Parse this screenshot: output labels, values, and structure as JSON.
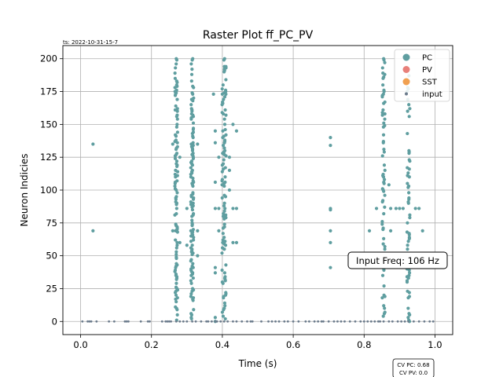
{
  "chart_data": {
    "type": "scatter",
    "title": "Raster Plot ff_PC_PV",
    "timestamp": "ts: 2022-10-31-15-7",
    "xlabel": "Time (s)",
    "ylabel": "Neuron Indicies",
    "xlim": [
      -0.05,
      1.05
    ],
    "ylim": [
      -10,
      210
    ],
    "x_ticks": [
      0.0,
      0.2,
      0.4,
      0.6,
      0.8,
      1.0
    ],
    "x_tick_labels": [
      "0.0",
      "0.2",
      "0.4",
      "0.6",
      "0.8",
      "1.0"
    ],
    "y_ticks": [
      0,
      25,
      50,
      75,
      100,
      125,
      150,
      175,
      200
    ],
    "y_tick_labels": [
      "0",
      "25",
      "50",
      "75",
      "100",
      "125",
      "150",
      "175",
      "200"
    ],
    "grid": true,
    "legend_position": "top-right",
    "legend": [
      {
        "label": "PC",
        "color": "#5f9ea0"
      },
      {
        "label": "PV",
        "color": "#e8807a"
      },
      {
        "label": "SST",
        "color": "#f0a050"
      },
      {
        "label": "input",
        "color": "#6b7b8c"
      }
    ],
    "annotation": "Input Freq: 106 Hz",
    "cv_pc": "CV PC: 0.68",
    "cv_pv": "CV PV: 0.0",
    "series": [
      {
        "name": "PC",
        "color": "#5f9ea0",
        "bursts": [
          {
            "t": 0.27,
            "jitter": 0.004,
            "n_min": 0,
            "n_max": 200,
            "density": 0.55
          },
          {
            "t": 0.315,
            "jitter": 0.004,
            "n_min": 0,
            "n_max": 200,
            "density": 0.6
          },
          {
            "t": 0.405,
            "jitter": 0.006,
            "n_min": 0,
            "n_max": 200,
            "density": 0.45
          },
          {
            "t": 0.855,
            "jitter": 0.004,
            "n_min": 0,
            "n_max": 200,
            "density": 0.35
          },
          {
            "t": 0.925,
            "jitter": 0.004,
            "n_min": 0,
            "n_max": 200,
            "density": 0.3
          }
        ],
        "points": [
          [
            0.035,
            135
          ],
          [
            0.035,
            69
          ],
          [
            0.26,
            135
          ],
          [
            0.26,
            69
          ],
          [
            0.28,
            60
          ],
          [
            0.28,
            125
          ],
          [
            0.3,
            58
          ],
          [
            0.3,
            86
          ],
          [
            0.33,
            69
          ],
          [
            0.33,
            135
          ],
          [
            0.33,
            50
          ],
          [
            0.375,
            173
          ],
          [
            0.38,
            145
          ],
          [
            0.38,
            136
          ],
          [
            0.38,
            106
          ],
          [
            0.38,
            86
          ],
          [
            0.38,
            41
          ],
          [
            0.38,
            37
          ],
          [
            0.38,
            3
          ],
          [
            0.38,
            0
          ],
          [
            0.39,
            125
          ],
          [
            0.39,
            86
          ],
          [
            0.39,
            69
          ],
          [
            0.41,
            194
          ],
          [
            0.41,
            184
          ],
          [
            0.41,
            173
          ],
          [
            0.42,
            125
          ],
          [
            0.42,
            115
          ],
          [
            0.42,
            100
          ],
          [
            0.43,
            150
          ],
          [
            0.43,
            86
          ],
          [
            0.43,
            60
          ],
          [
            0.44,
            145
          ],
          [
            0.44,
            86
          ],
          [
            0.44,
            60
          ],
          [
            0.705,
            140
          ],
          [
            0.705,
            134
          ],
          [
            0.705,
            86
          ],
          [
            0.705,
            85
          ],
          [
            0.705,
            69
          ],
          [
            0.705,
            60
          ],
          [
            0.705,
            41
          ],
          [
            0.815,
            69
          ],
          [
            0.835,
            86
          ],
          [
            0.84,
            50
          ],
          [
            0.87,
            104
          ],
          [
            0.875,
            86
          ],
          [
            0.875,
            69
          ],
          [
            0.89,
            86
          ],
          [
            0.9,
            86
          ],
          [
            0.91,
            86
          ],
          [
            0.945,
            86
          ],
          [
            0.955,
            86
          ],
          [
            0.965,
            69
          ]
        ]
      },
      {
        "name": "input",
        "color": "#6b7b8c",
        "points": [
          [
            0.005,
            0
          ],
          [
            0.02,
            0
          ],
          [
            0.025,
            0
          ],
          [
            0.03,
            0
          ],
          [
            0.045,
            0
          ],
          [
            0.08,
            0
          ],
          [
            0.095,
            0
          ],
          [
            0.125,
            0
          ],
          [
            0.13,
            0
          ],
          [
            0.135,
            0
          ],
          [
            0.17,
            0
          ],
          [
            0.19,
            0
          ],
          [
            0.195,
            0
          ],
          [
            0.23,
            0
          ],
          [
            0.24,
            0
          ],
          [
            0.245,
            0
          ],
          [
            0.25,
            0
          ],
          [
            0.255,
            0
          ],
          [
            0.27,
            0
          ],
          [
            0.28,
            0
          ],
          [
            0.29,
            0
          ],
          [
            0.3,
            0
          ],
          [
            0.315,
            0
          ],
          [
            0.325,
            0
          ],
          [
            0.34,
            0
          ],
          [
            0.355,
            0
          ],
          [
            0.36,
            0
          ],
          [
            0.37,
            0
          ],
          [
            0.38,
            0
          ],
          [
            0.385,
            0
          ],
          [
            0.395,
            0
          ],
          [
            0.405,
            0
          ],
          [
            0.415,
            0
          ],
          [
            0.43,
            0
          ],
          [
            0.44,
            0
          ],
          [
            0.455,
            0
          ],
          [
            0.47,
            0
          ],
          [
            0.48,
            0
          ],
          [
            0.485,
            0
          ],
          [
            0.51,
            0
          ],
          [
            0.53,
            0
          ],
          [
            0.54,
            0
          ],
          [
            0.55,
            0
          ],
          [
            0.56,
            0
          ],
          [
            0.575,
            0
          ],
          [
            0.585,
            0
          ],
          [
            0.6,
            0
          ],
          [
            0.615,
            0
          ],
          [
            0.635,
            0
          ],
          [
            0.645,
            0
          ],
          [
            0.66,
            0
          ],
          [
            0.67,
            0
          ],
          [
            0.68,
            0
          ],
          [
            0.685,
            0
          ],
          [
            0.7,
            0
          ],
          [
            0.715,
            0
          ],
          [
            0.725,
            0
          ],
          [
            0.735,
            0
          ],
          [
            0.745,
            0
          ],
          [
            0.76,
            0
          ],
          [
            0.775,
            0
          ],
          [
            0.79,
            0
          ],
          [
            0.8,
            0
          ],
          [
            0.81,
            0
          ],
          [
            0.82,
            0
          ],
          [
            0.83,
            0
          ],
          [
            0.84,
            0
          ],
          [
            0.845,
            0
          ],
          [
            0.855,
            0
          ],
          [
            0.87,
            0
          ],
          [
            0.88,
            0
          ],
          [
            0.895,
            0
          ],
          [
            0.905,
            0
          ],
          [
            0.915,
            0
          ],
          [
            0.925,
            0
          ],
          [
            0.94,
            0
          ],
          [
            0.955,
            0
          ],
          [
            0.97,
            0
          ],
          [
            0.985,
            0
          ],
          [
            0.995,
            0
          ]
        ]
      }
    ]
  }
}
